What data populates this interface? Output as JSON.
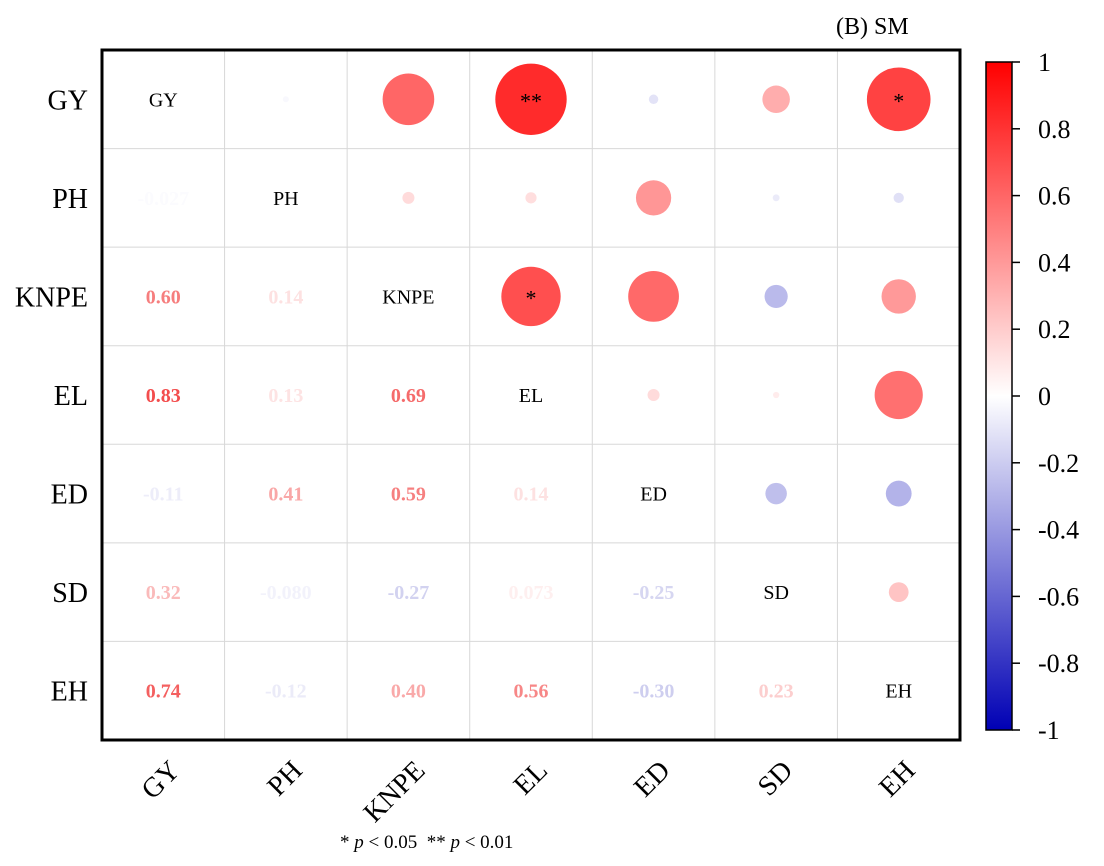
{
  "chart_data": {
    "type": "correlation-matrix",
    "title": "(B) SM",
    "variables": [
      "GY",
      "PH",
      "KNPE",
      "EL",
      "ED",
      "SD",
      "EH"
    ],
    "matrix": [
      [
        1.0,
        -0.027,
        0.6,
        0.83,
        -0.11,
        0.32,
        0.74
      ],
      [
        -0.027,
        1.0,
        0.14,
        0.13,
        0.41,
        -0.08,
        -0.12
      ],
      [
        0.6,
        0.14,
        1.0,
        0.69,
        0.59,
        -0.27,
        0.4
      ],
      [
        0.83,
        0.13,
        0.69,
        1.0,
        0.14,
        0.073,
        0.56
      ],
      [
        -0.11,
        0.41,
        0.59,
        0.14,
        1.0,
        -0.25,
        -0.3
      ],
      [
        0.32,
        -0.08,
        -0.27,
        0.073,
        -0.25,
        1.0,
        0.23
      ],
      [
        0.74,
        -0.12,
        0.4,
        0.56,
        -0.3,
        0.23,
        1.0
      ]
    ],
    "lower_labels": [
      [
        "",
        "",
        "",
        "",
        "",
        "",
        ""
      ],
      [
        "-0.027",
        "",
        "",
        "",
        "",
        "",
        ""
      ],
      [
        "0.60",
        "0.14",
        "",
        "",
        "",
        "",
        ""
      ],
      [
        "0.83",
        "0.13",
        "0.69",
        "",
        "",
        "",
        ""
      ],
      [
        "-0.11",
        "0.41",
        "0.59",
        "0.14",
        "",
        "",
        ""
      ],
      [
        "0.32",
        "-0.080",
        "-0.27",
        "0.073",
        "-0.25",
        "",
        ""
      ],
      [
        "0.74",
        "-0.12",
        "0.40",
        "0.56",
        "-0.30",
        "0.23",
        ""
      ]
    ],
    "significance": [
      [
        "",
        "",
        "",
        "**",
        "",
        "",
        "*"
      ],
      [
        "",
        "",
        "",
        "",
        "",
        "",
        ""
      ],
      [
        "",
        "",
        "",
        "*",
        "",
        "",
        ""
      ],
      [
        "",
        "",
        "",
        "",
        "",
        "",
        ""
      ],
      [
        "",
        "",
        "",
        "",
        "",
        "",
        ""
      ],
      [
        "",
        "",
        "",
        "",
        "",
        "",
        ""
      ],
      [
        "",
        "",
        "",
        "",
        "",
        "",
        ""
      ]
    ],
    "colorbar": {
      "range": [
        -1,
        1
      ],
      "ticks": [
        1,
        0.8,
        0.6,
        0.4,
        0.2,
        0,
        -0.2,
        -0.4,
        -0.6,
        -0.8,
        -1
      ],
      "tick_labels": [
        "1",
        "0.8",
        "0.6",
        "0.4",
        "0.2",
        "0",
        "-0.2",
        "-0.4",
        "-0.6",
        "-0.8",
        "-1"
      ],
      "colors": {
        "positive": "#ff0000",
        "neutral": "#ffffff",
        "negative": "#0000b4"
      }
    }
  },
  "footnote": {
    "star1_prefix": "* ",
    "p_symbol": "p",
    "star1_suffix": " < 0.05",
    "star2_prefix": "** ",
    "star2_suffix": " < 0.01"
  }
}
